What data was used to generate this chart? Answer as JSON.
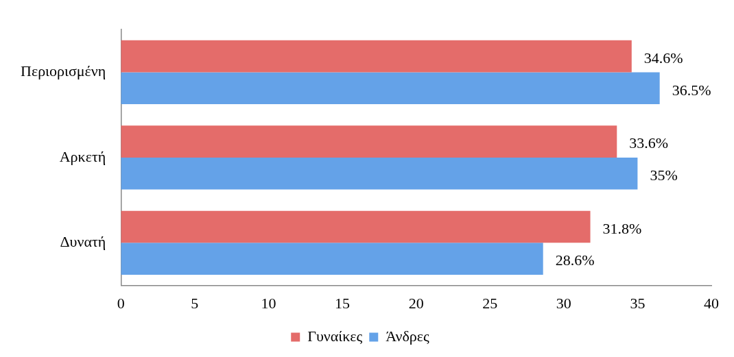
{
  "chart_data": {
    "type": "bar",
    "orientation": "horizontal",
    "categories": [
      "Περιορισμένη",
      "Αρκετή",
      "Δυνατή"
    ],
    "series": [
      {
        "name": "Γυναίκες",
        "color": "#e46c6a",
        "values": [
          34.6,
          33.6,
          31.8
        ],
        "value_labels": [
          "34.6%",
          "33.6%",
          "31.8%"
        ]
      },
      {
        "name": "Άνδρες",
        "color": "#64a2e8",
        "values": [
          36.5,
          35,
          28.6
        ],
        "value_labels": [
          "36.5%",
          "35%",
          "28.6%"
        ]
      }
    ],
    "xlim": [
      0,
      40
    ],
    "xticks": [
      0,
      5,
      10,
      15,
      20,
      25,
      30,
      35,
      40
    ],
    "grid": false,
    "legend": "bottom"
  }
}
